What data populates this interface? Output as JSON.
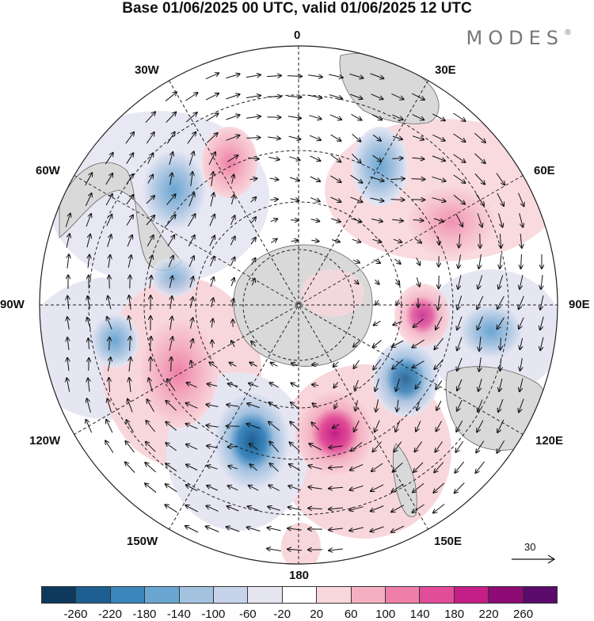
{
  "title": "Base 01/06/2025 00 UTC, valid 01/06/2025 12 UTC",
  "brand": "MODES",
  "brand_mark": "®",
  "longitude_labels": {
    "top": "0",
    "top_left": "30W",
    "top_right": "30E",
    "left_upper": "60W",
    "right_upper": "60E",
    "left": "90W",
    "right": "90E",
    "left_lower": "120W",
    "right_lower": "120E",
    "bottom_left": "150W",
    "bottom_right": "150E",
    "bottom": "180"
  },
  "reference_vector": "30",
  "colorbar": {
    "colors": [
      "#0d3a5c",
      "#1e5f91",
      "#3b86bd",
      "#6aa6d2",
      "#a3c2e0",
      "#c6d3ea",
      "#e6e6f3",
      "#ffffff",
      "#f8d7dc",
      "#f4b0c2",
      "#ef7fa8",
      "#e14d98",
      "#c31f86",
      "#8e0a74",
      "#5a0a6a"
    ],
    "tick_labels": [
      "-260",
      "-220",
      "-180",
      "-140",
      "-100",
      "-60",
      "-20",
      "20",
      "60",
      "100",
      "140",
      "180",
      "220",
      "260"
    ]
  }
}
